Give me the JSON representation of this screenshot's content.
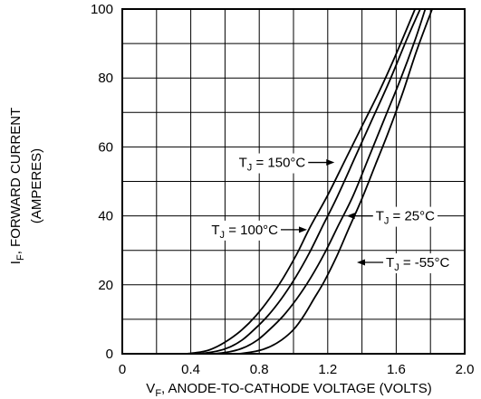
{
  "chart_data": {
    "type": "line",
    "title": "",
    "xlabel": {
      "main": "V",
      "sub": "F",
      "rest": ", ANODE-TO-CATHODE VOLTAGE (VOLTS)"
    },
    "ylabel": {
      "line1_main": "I",
      "line1_sub": "F",
      "line1_rest": ", FORWARD CURRENT",
      "line2": "(AMPERES)"
    },
    "xlim": [
      0,
      2.0
    ],
    "ylim": [
      0,
      100
    ],
    "x_ticks": [
      0,
      0.2,
      0.4,
      0.6,
      0.8,
      1.0,
      1.2,
      1.4,
      1.6,
      1.8,
      2.0
    ],
    "x_tick_labels": [
      "0",
      "",
      "0.4",
      "",
      "0.8",
      "",
      "1.2",
      "",
      "1.6",
      "",
      "2.0"
    ],
    "y_ticks": [
      0,
      10,
      20,
      30,
      40,
      50,
      60,
      70,
      80,
      90,
      100
    ],
    "y_tick_labels": [
      "0",
      "",
      "20",
      "",
      "40",
      "",
      "60",
      "",
      "80",
      "",
      "100"
    ],
    "grid": true,
    "series": [
      {
        "name": "T_J = 150°C",
        "label_main": "T",
        "label_sub": "J",
        "label_rest": " = 150°C",
        "x": [
          0.38,
          0.48,
          0.55,
          0.62,
          0.7,
          0.78,
          0.86,
          0.94,
          1.02,
          1.1,
          1.2,
          1.3,
          1.4,
          1.5,
          1.6,
          1.71
        ],
        "y": [
          0,
          0.7,
          2,
          4,
          7,
          11,
          16,
          22,
          29,
          37,
          46,
          56,
          66,
          76,
          87,
          100
        ]
      },
      {
        "name": "T_J = 100°C",
        "label_main": "T",
        "label_sub": "J",
        "label_rest": " = 100°C",
        "x": [
          0.45,
          0.55,
          0.63,
          0.7,
          0.77,
          0.85,
          0.93,
          1.01,
          1.09,
          1.17,
          1.26,
          1.36,
          1.46,
          1.56,
          1.66,
          1.74
        ],
        "y": [
          0,
          0.7,
          2,
          4,
          7,
          11,
          16,
          22,
          29,
          37,
          46,
          57,
          68,
          79,
          91,
          100
        ]
      },
      {
        "name": "T_J = 25°C",
        "label_main": "T",
        "label_sub": "J",
        "label_rest": " = 25°C",
        "x": [
          0.54,
          0.64,
          0.72,
          0.79,
          0.86,
          0.94,
          1.02,
          1.1,
          1.18,
          1.26,
          1.35,
          1.44,
          1.53,
          1.62,
          1.71,
          1.77
        ],
        "y": [
          0,
          0.7,
          2,
          4,
          7,
          11,
          16,
          22,
          29,
          37,
          46,
          57,
          68,
          79,
          91,
          100
        ]
      },
      {
        "name": "T_J = -55°C",
        "label_main": "T",
        "label_sub": "J",
        "label_rest": " = -55°C",
        "x": [
          0.68,
          0.78,
          0.86,
          0.93,
          1.0,
          1.06,
          1.12,
          1.18,
          1.25,
          1.32,
          1.4,
          1.48,
          1.56,
          1.64,
          1.72,
          1.81
        ],
        "y": [
          0,
          0.7,
          2,
          4,
          7,
          11,
          16,
          21,
          28,
          36,
          45,
          55,
          65,
          76,
          88,
          100
        ]
      }
    ],
    "annotations": [
      {
        "series": 0,
        "at": [
          1.25,
          55.5
        ],
        "arrow_side": "right"
      },
      {
        "series": 1,
        "at": [
          1.09,
          36.0
        ],
        "arrow_side": "right"
      },
      {
        "series": 2,
        "at": [
          1.3,
          40.0
        ],
        "arrow_side": "left"
      },
      {
        "series": 3,
        "at": [
          1.36,
          26.5
        ],
        "arrow_side": "left"
      }
    ]
  }
}
